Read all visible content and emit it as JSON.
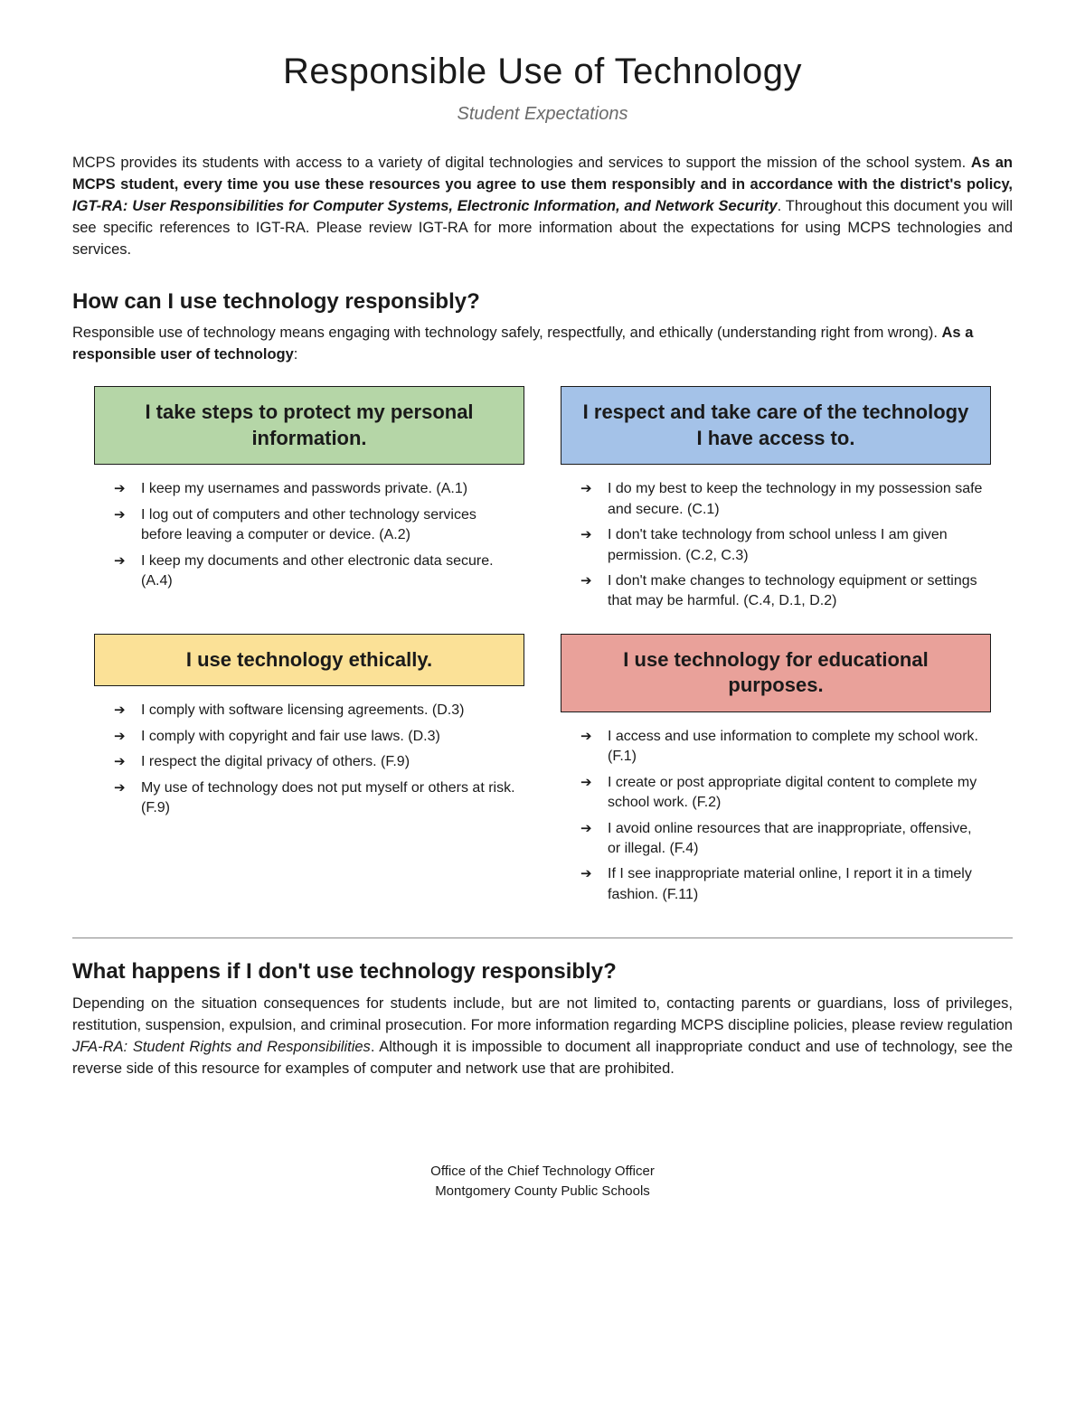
{
  "title": "Responsible Use of Technology",
  "subtitle": "Student Expectations",
  "intro": {
    "part1": "MCPS provides its students with access to a variety of digital technologies and services to support the mission of the school system. ",
    "bold1": "As an MCPS student, every time you use these resources you agree to use them responsibly and in accordance with the district's policy, ",
    "boldItalic": "IGT-RA: User Responsibilities for Computer Systems, Electronic Information, and Network Security",
    "part2": ".  Throughout this document you will see specific references to IGT-RA.  Please review IGT-RA for more information about the expectations for using MCPS technologies and services."
  },
  "howHead": "How can I use technology responsibly?",
  "howPara": {
    "text1": "Responsible use of technology means engaging with technology safely, respectfully, and ethically (understanding right from wrong).  ",
    "bold": "As a responsible user of technology",
    "text2": ":"
  },
  "boxes": {
    "green": {
      "color": "#b5d6a7",
      "title": "I take steps to protect my personal information.",
      "items": [
        "I keep my usernames and passwords private. (A.1)",
        "I log out of computers and other technology services before leaving a computer or device. (A.2)",
        "I keep my documents and other electronic data secure. (A.4)"
      ]
    },
    "blue": {
      "color": "#a4c2e8",
      "title": "I respect and take care of the technology I have access to.",
      "items": [
        "I do my best to keep the technology in my possession safe and secure. (C.1)",
        "I don't take technology from school unless I am given permission. (C.2, C.3)",
        "I don't make changes to technology equipment or settings that may be harmful. (C.4, D.1, D.2)"
      ]
    },
    "yellow": {
      "color": "#fbe197",
      "title": "I use technology ethically.",
      "items": [
        "I comply with software licensing agreements. (D.3)",
        "I comply with copyright and fair use laws. (D.3)",
        "I respect the digital privacy of others. (F.9)",
        "My use of technology does not put myself or others at risk. (F.9)"
      ]
    },
    "red": {
      "color": "#e9a19a",
      "title": "I use technology for educational purposes.",
      "items": [
        "I access and use information to complete my school work. (F.1)",
        "I create or post appropriate digital content to complete my school work. (F.2)",
        "I avoid online resources that are inappropriate, offensive, or illegal. (F.4)",
        "If I see inappropriate material online, I report it in a timely fashion. (F.11)"
      ]
    }
  },
  "whatHead": "What happens if I don't use technology responsibly?",
  "whatPara": {
    "text1": "Depending on the situation consequences for students include, but are not limited to, contacting parents or guardians, loss of privileges, restitution, suspension, expulsion, and criminal prosecution.  For more information regarding MCPS discipline policies, please review regulation ",
    "italic": "JFA-RA: Student Rights and Responsibilities",
    "text2": ".  Although it is impossible to document all inappropriate conduct and use of technology, see the reverse side of this resource for examples of computer and network use that are prohibited."
  },
  "footer": {
    "line1": "Office of the Chief Technology Officer",
    "line2": "Montgomery County Public Schools"
  }
}
